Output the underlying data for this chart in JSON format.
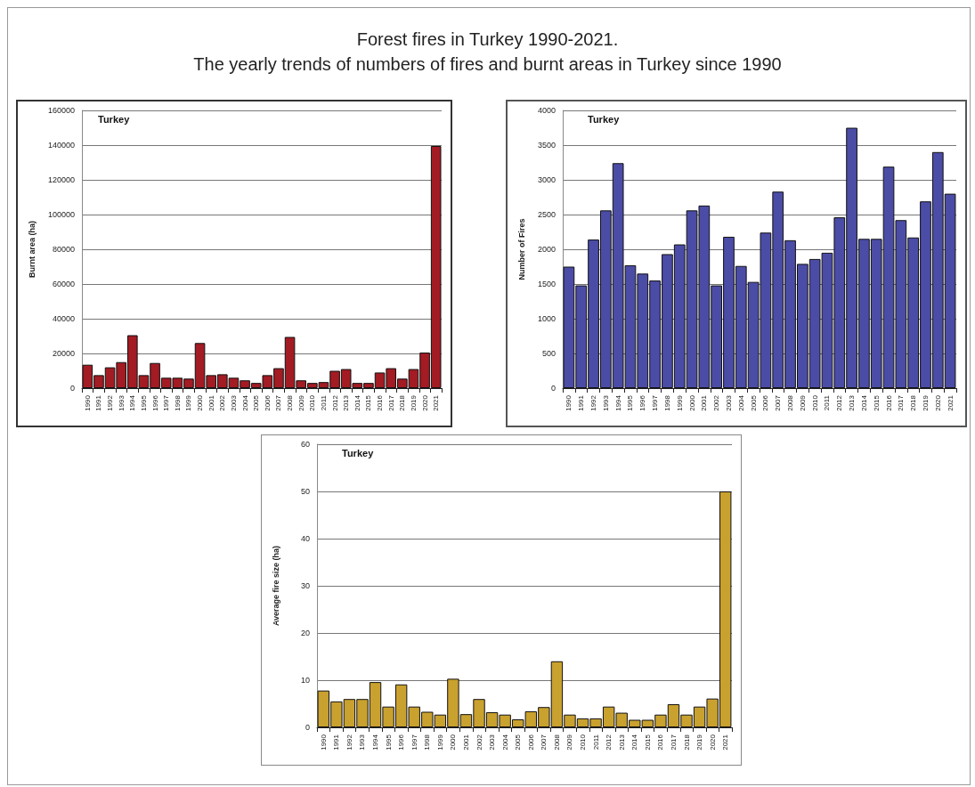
{
  "chart_data": [
    {
      "type": "bar",
      "title": "Forest fires in Turkey 1990-2021.",
      "subtitle": "The yearly trends of numbers of fires and burnt areas in Turkey since 1990",
      "annotations": [
        "Turkey"
      ],
      "ylabel": "Burnt area (ha)",
      "categories": [
        "1990",
        "1991",
        "1992",
        "1993",
        "1994",
        "1995",
        "1996",
        "1997",
        "1998",
        "1999",
        "2000",
        "2001",
        "2002",
        "2003",
        "2004",
        "2005",
        "2006",
        "2007",
        "2008",
        "2009",
        "2010",
        "2011",
        "2012",
        "2013",
        "2014",
        "2015",
        "2016",
        "2017",
        "2018",
        "2019",
        "2020",
        "2021"
      ],
      "values": [
        13500,
        7500,
        12000,
        15000,
        30500,
        7500,
        14500,
        6000,
        6000,
        5500,
        26000,
        7500,
        8000,
        6000,
        4500,
        3000,
        7500,
        11500,
        29500,
        4500,
        3000,
        3500,
        10000,
        11000,
        3000,
        3000,
        9000,
        11500,
        5500,
        11000,
        20500,
        139500
      ],
      "color": "#a31b23",
      "ylim": [
        0,
        160000
      ],
      "yticks": [
        0,
        20000,
        40000,
        60000,
        80000,
        100000,
        120000,
        140000,
        160000
      ],
      "grid": "y"
    },
    {
      "type": "bar",
      "annotations": [
        "Turkey"
      ],
      "ylabel": "Number of Fires",
      "categories": [
        "1990",
        "1991",
        "1992",
        "1993",
        "1994",
        "1995",
        "1996",
        "1997",
        "1998",
        "1999",
        "2000",
        "2001",
        "2002",
        "2003",
        "2004",
        "2005",
        "2006",
        "2007",
        "2008",
        "2009",
        "2010",
        "2011",
        "2012",
        "2013",
        "2014",
        "2015",
        "2016",
        "2017",
        "2018",
        "2019",
        "2020",
        "2021"
      ],
      "values": [
        1750,
        1480,
        2140,
        2560,
        3240,
        1770,
        1650,
        1550,
        1930,
        2070,
        2560,
        2630,
        1480,
        2180,
        1760,
        1530,
        2240,
        2830,
        2130,
        1790,
        1860,
        1950,
        2460,
        3750,
        2150,
        2150,
        3190,
        2420,
        2170,
        2690,
        3400,
        2800
      ],
      "color": "#4b4ca6",
      "ylim": [
        0,
        4000
      ],
      "yticks": [
        0,
        500,
        1000,
        1500,
        2000,
        2500,
        3000,
        3500,
        4000
      ],
      "grid": "y"
    },
    {
      "type": "bar",
      "annotations": [
        "Turkey"
      ],
      "ylabel": "Average fire size (ha)",
      "categories": [
        "1990",
        "1991",
        "1992",
        "1993",
        "1994",
        "1995",
        "1996",
        "1997",
        "1998",
        "1999",
        "2000",
        "2001",
        "2002",
        "2003",
        "2004",
        "2005",
        "2006",
        "2007",
        "2008",
        "2009",
        "2010",
        "2011",
        "2012",
        "2013",
        "2014",
        "2015",
        "2016",
        "2017",
        "2018",
        "2019",
        "2020",
        "2021"
      ],
      "values": [
        7.8,
        5.5,
        6,
        6,
        9.6,
        4.4,
        9.1,
        4.4,
        3.3,
        2.7,
        10.3,
        2.8,
        6,
        3.2,
        2.7,
        1.7,
        3.4,
        4.3,
        14,
        2.7,
        1.9,
        1.9,
        4.4,
        3.1,
        1.6,
        1.6,
        2.7,
        4.9,
        2.7,
        4.4,
        6.1,
        50
      ],
      "color": "#c9a12e",
      "ylim": [
        0,
        60
      ],
      "yticks": [
        0,
        10,
        20,
        30,
        40,
        50,
        60
      ],
      "grid": "y"
    }
  ]
}
